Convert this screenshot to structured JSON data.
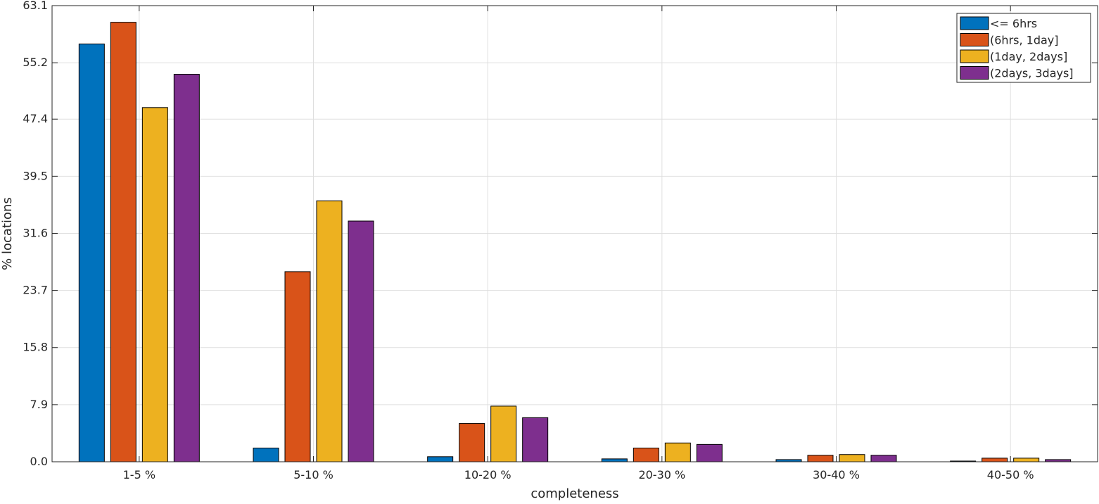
{
  "chart_data": {
    "type": "bar",
    "title": "",
    "xlabel": "completeness",
    "ylabel": "% locations",
    "categories": [
      "1-5 %",
      "5-10 %",
      "10-20 %",
      "20-30 %",
      "30-40 %",
      "40-50 %"
    ],
    "ylim": [
      0,
      63.1
    ],
    "yticks": [
      0.0,
      7.9,
      15.8,
      23.7,
      31.6,
      39.5,
      47.4,
      55.2,
      63.1
    ],
    "ytick_labels": [
      "0.0",
      "7.9",
      "15.8",
      "23.7",
      "31.6",
      "39.5",
      "47.4",
      "55.2",
      "63.1"
    ],
    "grid": true,
    "legend_position": "top-right",
    "series": [
      {
        "name": "<= 6hrs",
        "color": "#0072BD",
        "values": [
          57.8,
          1.9,
          0.7,
          0.4,
          0.3,
          0.1
        ]
      },
      {
        "name": "(6hrs, 1day]",
        "color": "#D95319",
        "values": [
          60.8,
          26.3,
          5.3,
          1.9,
          0.9,
          0.5
        ]
      },
      {
        "name": "(1day, 2days]",
        "color": "#EDB120",
        "values": [
          49.0,
          36.1,
          7.7,
          2.6,
          1.0,
          0.5
        ]
      },
      {
        "name": "(2days, 3days]",
        "color": "#7E2F8E",
        "values": [
          53.6,
          33.3,
          6.1,
          2.4,
          0.9,
          0.3
        ]
      }
    ]
  }
}
